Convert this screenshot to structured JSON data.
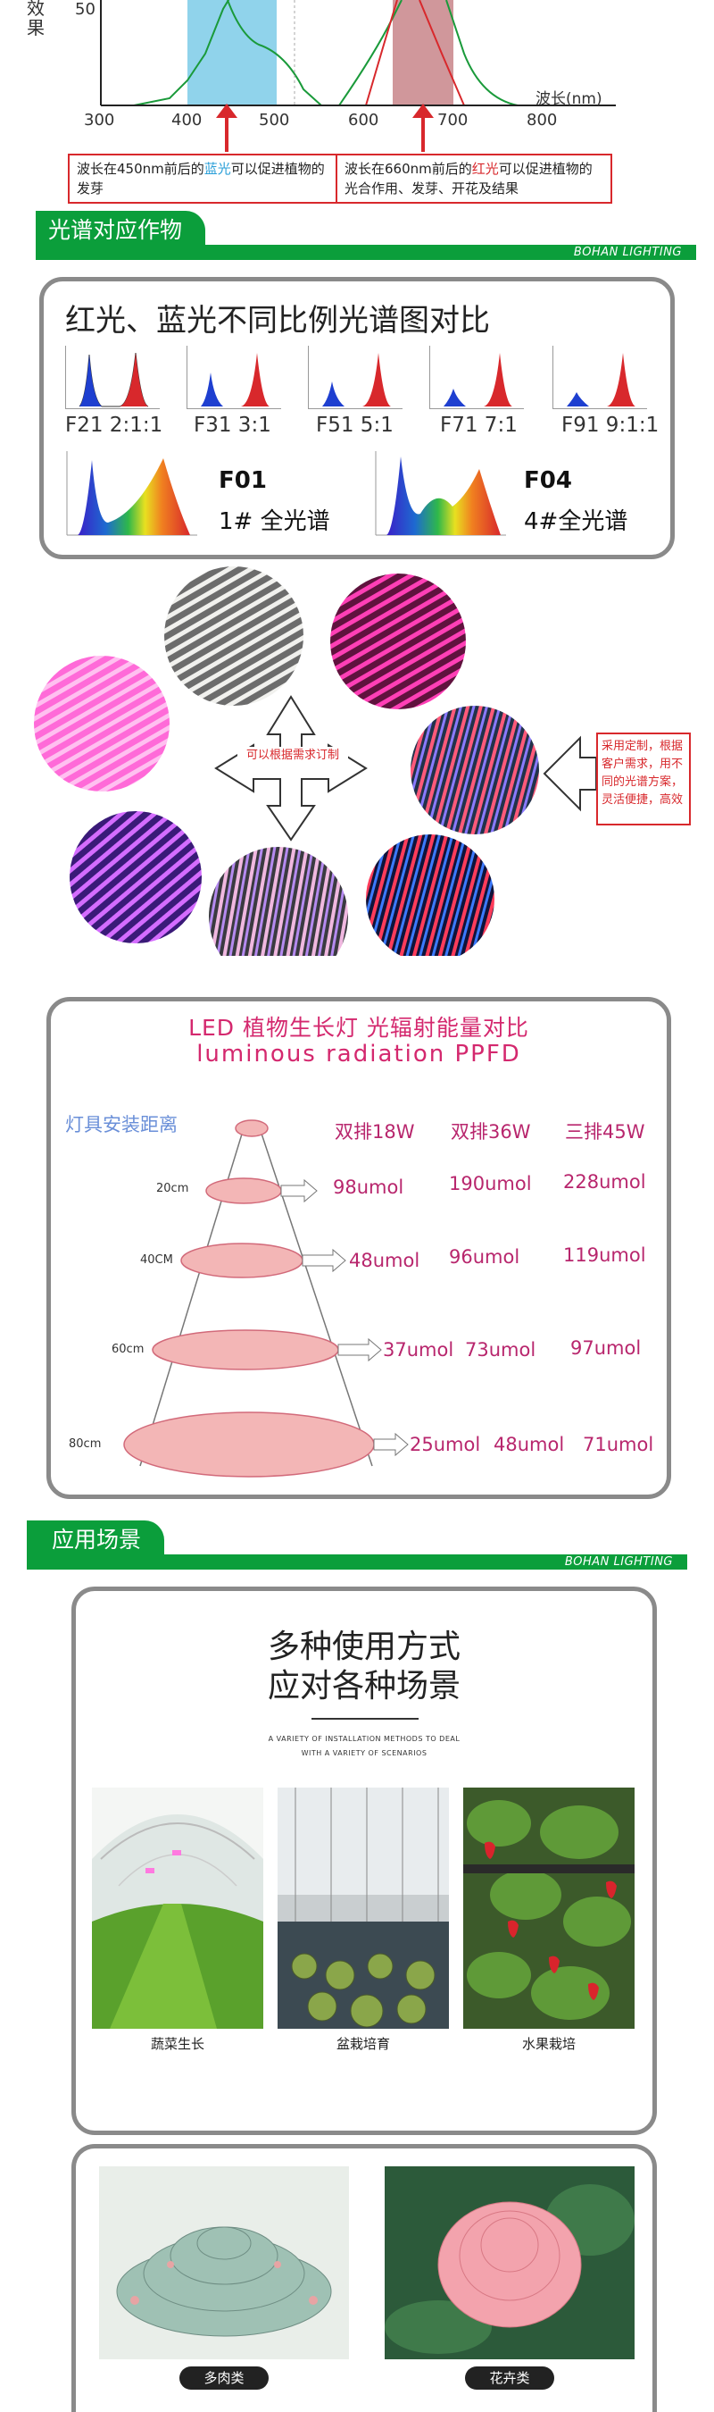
{
  "top_chart": {
    "y_label": "效果",
    "y_tick": "50",
    "x_ticks": [
      "300",
      "400",
      "500",
      "600",
      "700",
      "800"
    ],
    "x_label": "波长(nm)",
    "blue_caption": {
      "prefix": "波长在450nm前后的",
      "highlight": "蓝光",
      "suffix": "可以促进植物的发芽"
    },
    "red_caption": {
      "prefix": "波长在660nm前后的",
      "highlight": "红光",
      "suffix": "可以促进植物的光合作用、发芽、开花及结果"
    },
    "blue_color": "#2a9fd8",
    "red_color": "#d8282c"
  },
  "section1": {
    "title": "光谱对应作物",
    "brand": "BOHAN LIGHTING"
  },
  "spectrum_card": {
    "title": "红光、蓝光不同比例光谱图对比",
    "small": [
      {
        "label": "F21 2:1:1"
      },
      {
        "label": "F31 3:1"
      },
      {
        "label": "F51 5:1"
      },
      {
        "label": "F71 7:1"
      },
      {
        "label": "F91 9:1:1"
      }
    ],
    "big": [
      {
        "code": "F01",
        "name": "1# 全光谱"
      },
      {
        "code": "F04",
        "name": "4#全光谱"
      }
    ]
  },
  "custom": {
    "center_text": "可以根据需求订制",
    "side_text": "采用定制，根据客户需求，用不同的光谱方案，灵活便捷，高效"
  },
  "ppfd": {
    "title": "LED 植物生长灯 光辐射能量对比",
    "subtitle": "luminous radiation PPFD",
    "distance_label": "灯具安装距离",
    "columns": [
      "双排18W",
      "双排36W",
      "三排45W"
    ],
    "rows": [
      {
        "distance": "20cm",
        "values": [
          "98umol",
          "190umol",
          "228umol"
        ]
      },
      {
        "distance": "40CM",
        "values": [
          "48umol",
          "96umol",
          "119umol"
        ]
      },
      {
        "distance": "60cm",
        "values": [
          "37umol",
          "73umol",
          "97umol"
        ]
      },
      {
        "distance": "80cm",
        "values": [
          "25umol",
          "48umol",
          "71umol"
        ]
      }
    ]
  },
  "section2": {
    "title": "应用场景",
    "brand": "BOHAN LIGHTING"
  },
  "scenes": {
    "title_line1": "多种使用方式",
    "title_line2": "应对各种场景",
    "sub_line1": "A VARIETY OF INSTALLATION METHODS TO DEAL",
    "sub_line2": "WITH A VARIETY OF SCENARIOS",
    "items": [
      {
        "caption": "蔬菜生长"
      },
      {
        "caption": "盆栽培育"
      },
      {
        "caption": "水果栽培"
      }
    ],
    "items2": [
      {
        "caption": "多肉类"
      },
      {
        "caption": "花卉类"
      }
    ]
  }
}
